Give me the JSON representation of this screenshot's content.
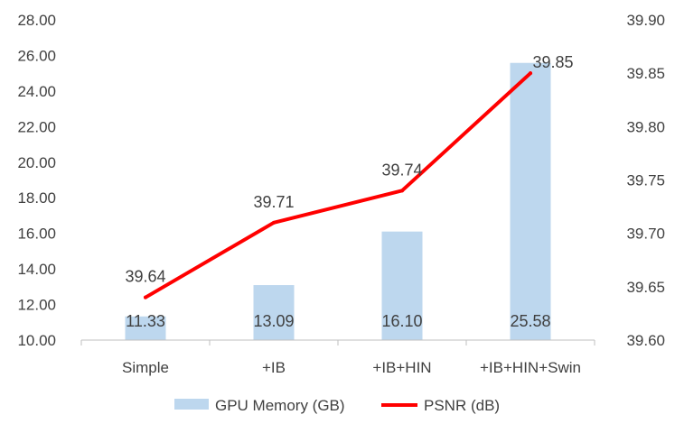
{
  "colors": {
    "bar": "#BDD7EE",
    "line": "#FF0000",
    "axis": "#BFBFBF",
    "text": "#404040"
  },
  "legend": {
    "memory_label": "GPU Memory (GB)",
    "psnr_label": "PSNR (dB)",
    "placement": "bottom"
  },
  "chart_data": {
    "type": "bar",
    "title": "",
    "xlabel": "",
    "ylabel": "",
    "y2label": "",
    "grid": false,
    "categories": [
      "Simple",
      "+IB",
      "+IB+HIN",
      "+IB+HIN+Swin"
    ],
    "ylim": [
      10,
      28
    ],
    "y2lim": [
      39.6,
      39.9
    ],
    "y_ticks": [
      "10.00",
      "12.00",
      "14.00",
      "16.00",
      "18.00",
      "20.00",
      "22.00",
      "24.00",
      "26.00",
      "28.00"
    ],
    "y2_ticks": [
      "39.60",
      "39.65",
      "39.70",
      "39.75",
      "39.80",
      "39.85",
      "39.90"
    ],
    "series": [
      {
        "name": "GPU Memory (GB)",
        "type": "bar",
        "axis": "left",
        "values": [
          11.33,
          13.09,
          16.1,
          25.58
        ],
        "labels": [
          "11.33",
          "13.09",
          "16.10",
          "25.58"
        ]
      },
      {
        "name": "PSNR (dB)",
        "type": "line",
        "axis": "right",
        "values": [
          39.64,
          39.71,
          39.74,
          39.85
        ],
        "labels": [
          "39.64",
          "39.71",
          "39.74",
          "39.85"
        ]
      }
    ]
  }
}
